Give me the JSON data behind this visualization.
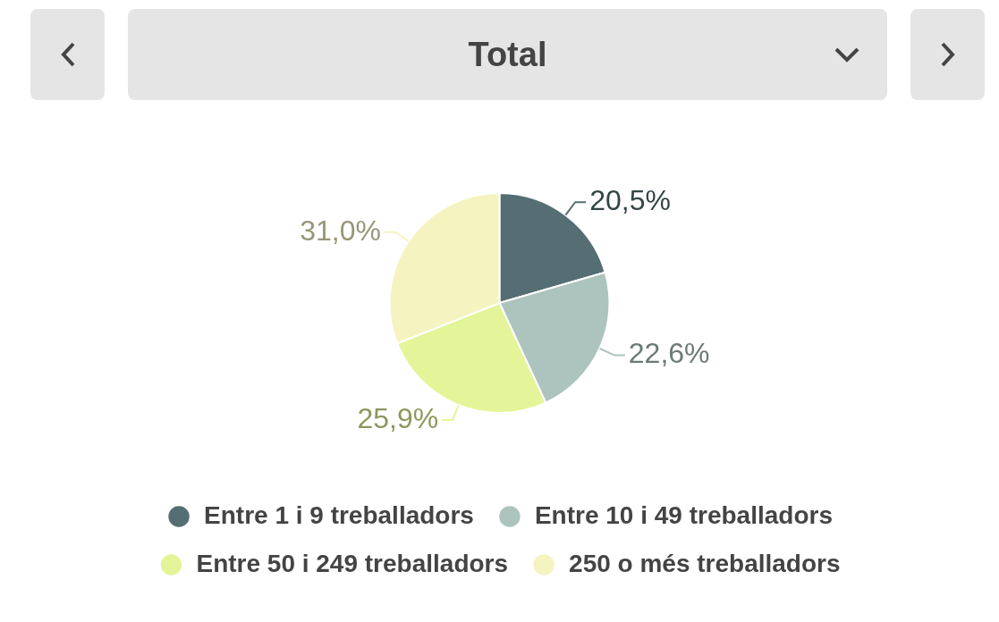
{
  "chart_data": {
    "type": "pie",
    "title": "Total",
    "categories": [
      "Entre 1 i 9 treballadors",
      "Entre 10 i 49 treballadors",
      "Entre 50 i 249 treballadors",
      "250 o més treballadors"
    ],
    "values": [
      20.5,
      22.6,
      25.9,
      31.0
    ],
    "colors": [
      "#546e73",
      "#adc4be",
      "#e3f598",
      "#f5f3c0"
    ],
    "value_labels": [
      "20,5%",
      "22,6%",
      "25,9%",
      "31,0%"
    ],
    "legend": "bottom"
  }
}
